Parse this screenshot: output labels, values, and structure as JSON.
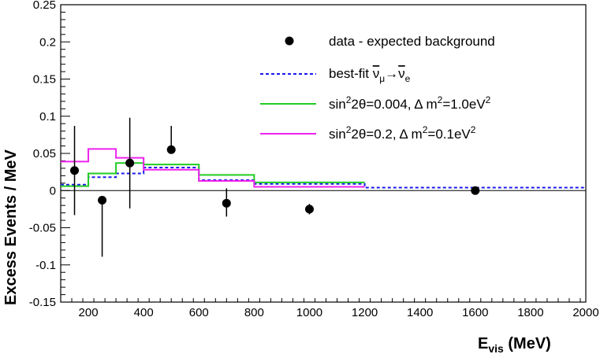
{
  "chart_data": {
    "type": "scatter",
    "title": "",
    "xlabel": {
      "main": "E",
      "sub": "vis",
      "unit": " (MeV)"
    },
    "ylabel": "Excess Events / MeV",
    "xlim": [
      100,
      2000
    ],
    "ylim": [
      -0.15,
      0.25
    ],
    "xticks": [
      200,
      400,
      600,
      800,
      1000,
      1200,
      1400,
      1600,
      1800,
      2000
    ],
    "yticks": [
      -0.15,
      -0.1,
      -0.05,
      0,
      0.05,
      0.1,
      0.15,
      0.2,
      0.25
    ],
    "ytick_labels": [
      "-0.15",
      "-0.1",
      "-0.05",
      "0",
      "0.05",
      "0.1",
      "0.15",
      "0.2",
      "0.25"
    ],
    "legend_position": "top-right",
    "data_points": {
      "name": "data - expected background",
      "color": "#000000",
      "points": [
        {
          "x": 150,
          "y": 0.027,
          "ylow": -0.033,
          "yhigh": 0.087
        },
        {
          "x": 250,
          "y": -0.013,
          "ylow": -0.089,
          "yhigh": -0.013
        },
        {
          "x": 350,
          "y": 0.037,
          "ylow": -0.024,
          "yhigh": 0.098
        },
        {
          "x": 500,
          "y": 0.055,
          "ylow": 0.055,
          "yhigh": 0.087
        },
        {
          "x": 700,
          "y": -0.017,
          "ylow": -0.035,
          "yhigh": 0.003
        },
        {
          "x": 1000,
          "y": -0.025,
          "ylow": -0.032,
          "yhigh": -0.018
        },
        {
          "x": 1600,
          "y": 0.0,
          "ylow": 0.0,
          "yhigh": 0.0
        }
      ]
    },
    "bin_edges": [
      100,
      200,
      300,
      400,
      600,
      800,
      1200,
      2000
    ],
    "series": [
      {
        "name": "best-fit",
        "legend_parts": {
          "lead": "best-fit ",
          "nu1": "ν",
          "sub1": "μ",
          "arrow": "→",
          "nu2": "ν",
          "sub2": "e"
        },
        "color": "#1a1aee",
        "dashed": true,
        "values": [
          0.008,
          0.018,
          0.023,
          0.031,
          0.014,
          0.009,
          0.004
        ]
      },
      {
        "name": "sin22θ=0.004, Δ m2=1.0eV2",
        "legend_parts": {
          "a": "sin",
          "b": "2",
          "c": "2θ=0.004, Δ m",
          "d": "2",
          "e": "=1.0eV",
          "f": "2"
        },
        "color": "#22cc22",
        "dashed": false,
        "values": [
          0.006,
          0.023,
          0.037,
          0.035,
          0.021,
          0.011,
          null
        ]
      },
      {
        "name": "sin22θ=0.2, Δ m2=0.1eV2",
        "legend_parts": {
          "a": "sin",
          "b": "2",
          "c": "2θ=0.2, Δ m",
          "d": "2",
          "e": "=0.1eV",
          "f": "2"
        },
        "color": "#ee22ee",
        "dashed": false,
        "values": [
          0.039,
          0.056,
          0.044,
          0.028,
          0.013,
          0.005,
          null
        ]
      }
    ]
  }
}
